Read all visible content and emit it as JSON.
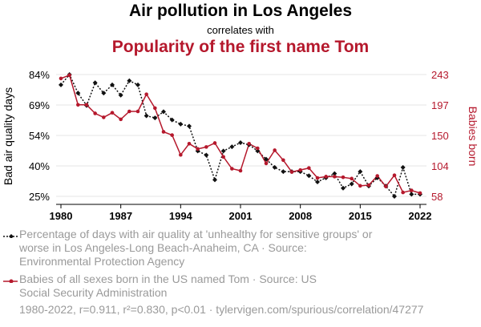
{
  "header": {
    "title": "Air pollution in Los Angeles",
    "subtitle": "correlates with",
    "title2": "Popularity of the first name Tom"
  },
  "colors": {
    "series1": "#111111",
    "series2": "#b5182c",
    "legend_text": "#9a9a9a"
  },
  "chart_data": {
    "type": "line",
    "x": [
      1980,
      1981,
      1982,
      1983,
      1984,
      1985,
      1986,
      1987,
      1988,
      1989,
      1990,
      1991,
      1992,
      1993,
      1994,
      1995,
      1996,
      1997,
      1998,
      1999,
      2000,
      2001,
      2002,
      2003,
      2004,
      2005,
      2006,
      2007,
      2008,
      2009,
      2010,
      2011,
      2012,
      2013,
      2014,
      2015,
      2016,
      2017,
      2018,
      2019,
      2020,
      2021,
      2022
    ],
    "xlabel": "",
    "xticks": [
      "1980",
      "1987",
      "1994",
      "2001",
      "2008",
      "2015",
      "2022"
    ],
    "xlim": [
      1980,
      2022
    ],
    "left_axis": {
      "label": "Bad air quality days",
      "ylim": [
        25,
        84
      ],
      "ticks": [
        "84%",
        "69%",
        "54%",
        "40%",
        "25%"
      ]
    },
    "right_axis": {
      "label": "Babies born",
      "ylim": [
        58,
        243
      ],
      "ticks": [
        "243",
        "197",
        "150",
        "104",
        "58"
      ]
    },
    "series": [
      {
        "name": "Percentage of days with air quality at 'unhealthy for sensitive groups' or worse in Los Angeles-Long Beach-Anaheim, CA · Source: Environmental Protection Agency",
        "axis": "left",
        "style": "dotted-diamond",
        "values": [
          79,
          84,
          75,
          69,
          80,
          75,
          79,
          74,
          81,
          79,
          64,
          63,
          66,
          62,
          60,
          59,
          47,
          45,
          33,
          47,
          49,
          51,
          50,
          47,
          43,
          39,
          37,
          37,
          37,
          35,
          32,
          34,
          36,
          29,
          31,
          37,
          30,
          34,
          30,
          25,
          39,
          26,
          26
        ]
      },
      {
        "name": "Babies of all sexes born in the US named Tom · Source: US Social Security Administration",
        "axis": "right",
        "style": "solid-circle",
        "values": [
          237,
          242,
          197,
          197,
          184,
          178,
          185,
          175,
          187,
          187,
          213,
          192,
          156,
          151,
          121,
          138,
          130,
          133,
          139,
          118,
          100,
          97,
          138,
          131,
          108,
          128,
          113,
          95,
          98,
          101,
          86,
          88,
          88,
          87,
          85,
          74,
          75,
          89,
          73,
          90,
          64,
          67,
          63
        ]
      }
    ],
    "grid": true,
    "footer": "1980-2022, r=0.911, r²=0.830, p<0.01 · tylervigen.com/spurious/correlation/47277"
  },
  "legend": [
    {
      "text": "Percentage of days with air quality at 'unhealthy for sensitive groups' or worse in Los Angeles-Long Beach-Anaheim, CA · Source: Environmental Protection Agency"
    },
    {
      "text": "Babies of all sexes born in the US named Tom · Source: US Social Security Administration"
    }
  ]
}
